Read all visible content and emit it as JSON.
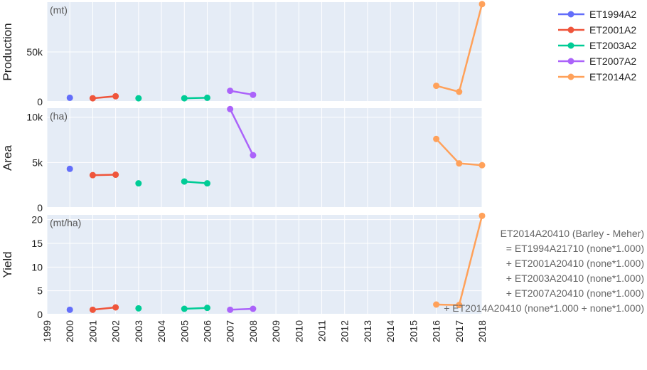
{
  "chart_data": {
    "type": "line",
    "x_ticks": [
      "1999",
      "2000",
      "2001",
      "2002",
      "2003",
      "2004",
      "2005",
      "2006",
      "2007",
      "2008",
      "2009",
      "2010",
      "2011",
      "2012",
      "2013",
      "2014",
      "2015",
      "2016",
      "2017",
      "2018"
    ],
    "xlim": [
      1999,
      2018
    ],
    "legend_placement": "top-right",
    "grid": true,
    "series": [
      {
        "name": "ET1994A2",
        "color": "#636efa"
      },
      {
        "name": "ET2001A2",
        "color": "#ef553b"
      },
      {
        "name": "ET2003A2",
        "color": "#00cc96"
      },
      {
        "name": "ET2007A2",
        "color": "#ab63fa"
      },
      {
        "name": "ET2014A2",
        "color": "#ffa15a"
      }
    ],
    "panels": [
      {
        "ylabel": "Production",
        "unit": "(mt)",
        "ylim": [
          0,
          100000
        ],
        "yticks": [
          0,
          50000
        ],
        "ytick_labels": [
          "0",
          "50k"
        ],
        "series": [
          {
            "name": "ET1994A2",
            "points": [
              [
                2000,
                4000
              ]
            ]
          },
          {
            "name": "ET2001A2",
            "points": [
              [
                2001,
                3500
              ],
              [
                2002,
                5500
              ]
            ]
          },
          {
            "name": "ET2003A2",
            "points": [
              [
                2003,
                3500
              ]
            ]
          },
          {
            "name": "ET2003A2",
            "points": [
              [
                2005,
                3500
              ],
              [
                2006,
                4000
              ]
            ]
          },
          {
            "name": "ET2007A2",
            "points": [
              [
                2007,
                11000
              ],
              [
                2008,
                7000
              ]
            ]
          },
          {
            "name": "ET2014A2",
            "points": [
              [
                2016,
                16000
              ],
              [
                2017,
                10000
              ],
              [
                2018,
                98000
              ]
            ]
          }
        ]
      },
      {
        "ylabel": "Area",
        "unit": "(ha)",
        "ylim": [
          0,
          11000
        ],
        "yticks": [
          0,
          5000,
          10000
        ],
        "ytick_labels": [
          "0",
          "5k",
          "10k"
        ],
        "series": [
          {
            "name": "ET1994A2",
            "points": [
              [
                2000,
                4300
              ]
            ]
          },
          {
            "name": "ET2001A2",
            "points": [
              [
                2001,
                3600
              ],
              [
                2002,
                3650
              ]
            ]
          },
          {
            "name": "ET2003A2",
            "points": [
              [
                2003,
                2700
              ]
            ]
          },
          {
            "name": "ET2003A2",
            "points": [
              [
                2005,
                2900
              ],
              [
                2006,
                2700
              ]
            ]
          },
          {
            "name": "ET2007A2",
            "points": [
              [
                2007,
                10900
              ],
              [
                2008,
                5800
              ]
            ]
          },
          {
            "name": "ET2014A2",
            "points": [
              [
                2016,
                7600
              ],
              [
                2017,
                4900
              ],
              [
                2018,
                4700
              ]
            ]
          }
        ]
      },
      {
        "ylabel": "Yield",
        "unit": "(mt/ha)",
        "ylim": [
          0,
          21
        ],
        "yticks": [
          0,
          5,
          10,
          15,
          20
        ],
        "ytick_labels": [
          "0",
          "5",
          "10",
          "15",
          "20"
        ],
        "series": [
          {
            "name": "ET1994A2",
            "points": [
              [
                2000,
                1.0
              ]
            ]
          },
          {
            "name": "ET2001A2",
            "points": [
              [
                2001,
                1.0
              ],
              [
                2002,
                1.5
              ]
            ]
          },
          {
            "name": "ET2003A2",
            "points": [
              [
                2003,
                1.3
              ]
            ]
          },
          {
            "name": "ET2003A2",
            "points": [
              [
                2005,
                1.2
              ],
              [
                2006,
                1.4
              ]
            ]
          },
          {
            "name": "ET2007A2",
            "points": [
              [
                2007,
                1.0
              ],
              [
                2008,
                1.2
              ]
            ]
          },
          {
            "name": "ET2014A2",
            "points": [
              [
                2016,
                2.1
              ],
              [
                2017,
                2.0
              ],
              [
                2018,
                20.8
              ]
            ]
          }
        ]
      }
    ],
    "annotation_lines": [
      "ET2014A20410 (Barley - Meher)",
      "= ET1994A21710 (none*1.000)",
      "+ ET2001A20410 (none*1.000)",
      "+ ET2003A20410 (none*1.000)",
      "+ ET2007A20410 (none*1.000)",
      "+ ET2014A20410 (none*1.000 + none*1.000)"
    ]
  }
}
